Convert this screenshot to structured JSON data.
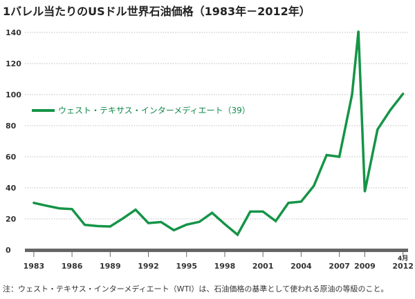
{
  "title": "1バレル当たりのUSドル世界石油価格（1983年－2012年）",
  "note": "注：ウェスト・テキサス・インターメディエート（WTI）は、石油価格の基準として使われる原油の等級のこと。",
  "colors": {
    "series": "#159447",
    "grid": "#bbbbbb",
    "axis": "#666666"
  },
  "chart_data": {
    "type": "line",
    "title": "1バレル当たりのUSドル世界石油価格（1983年－2012年）",
    "xlabel": "",
    "ylabel": "",
    "ylim": [
      0,
      140
    ],
    "xlim": [
      1982.3,
      2012.4
    ],
    "yticks": [
      0,
      20,
      40,
      60,
      80,
      100,
      120,
      140
    ],
    "xticks": [
      {
        "x": 1983,
        "label": "1983"
      },
      {
        "x": 1986,
        "label": "1986"
      },
      {
        "x": 1989,
        "label": "1989"
      },
      {
        "x": 1992,
        "label": "1992"
      },
      {
        "x": 1995,
        "label": "1995"
      },
      {
        "x": 1998,
        "label": "1998"
      },
      {
        "x": 2001,
        "label": "2001"
      },
      {
        "x": 2004,
        "label": "2004"
      },
      {
        "x": 2007,
        "label": "2007"
      },
      {
        "x": 2009,
        "label": "2009"
      },
      {
        "x": 2012,
        "label": "2012",
        "sublabel": "4月"
      }
    ],
    "grid": true,
    "legend_position": "upper-left",
    "series": [
      {
        "name": "ウェスト・テキサス・インターメディエート（39）",
        "x": [
          1983,
          1984,
          1985,
          1986,
          1987,
          1988,
          1989,
          1990,
          1991,
          1992,
          1993,
          1994,
          1995,
          1996,
          1997,
          1998,
          1999,
          2000,
          2001,
          2002,
          2003,
          2004,
          2005,
          2006,
          2007,
          2008,
          2008.5,
          2009,
          2010,
          2011,
          2012
        ],
        "values": [
          30.3,
          28.5,
          26.8,
          26.3,
          16.2,
          15.4,
          15.1,
          20.3,
          25.9,
          17.3,
          18.0,
          12.7,
          16.3,
          18.1,
          23.9,
          16.6,
          9.8,
          24.7,
          24.7,
          18.6,
          30.3,
          31.1,
          41.3,
          61.1,
          60.0,
          100.0,
          140.8,
          37.5,
          77.5,
          90.0,
          100.5
        ]
      }
    ]
  }
}
